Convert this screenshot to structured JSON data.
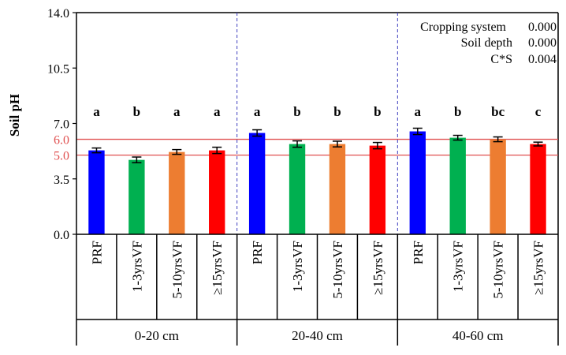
{
  "chart_data": {
    "type": "bar",
    "title": "",
    "xlabel": "",
    "ylabel": "Soil pH",
    "ylim": [
      0,
      14
    ],
    "yticks": [
      "0.0",
      "3.5",
      "7.0",
      "10.5",
      "14.0"
    ],
    "reference_lines": [
      {
        "value": 6.0,
        "label": "6.0",
        "color": "#e05050"
      },
      {
        "value": 5.0,
        "label": "5.0",
        "color": "#e05050"
      }
    ],
    "stats": [
      {
        "label": "Cropping system",
        "value": "0.000"
      },
      {
        "label": "Soil depth",
        "value": "0.000"
      },
      {
        "label": "C*S",
        "value": "0.004"
      }
    ],
    "series_colors": {
      "PRF": "#0000ff",
      "1-3yrsVF": "#00b050",
      "5-10yrsVF": "#ed7d31",
      "≥15yrsVF": "#ff0000"
    },
    "groups": [
      {
        "depth": "0-20 cm",
        "bars": [
          {
            "category": "PRF",
            "value": 5.3,
            "error": 0.15,
            "letter": "a"
          },
          {
            "category": "1-3yrsVF",
            "value": 4.7,
            "error": 0.18,
            "letter": "b"
          },
          {
            "category": "5-10yrsVF",
            "value": 5.2,
            "error": 0.15,
            "letter": "a"
          },
          {
            "category": "≥15yrsVF",
            "value": 5.3,
            "error": 0.2,
            "letter": "a"
          }
        ]
      },
      {
        "depth": "20-40 cm",
        "bars": [
          {
            "category": "PRF",
            "value": 6.4,
            "error": 0.2,
            "letter": "a"
          },
          {
            "category": "1-3yrsVF",
            "value": 5.7,
            "error": 0.2,
            "letter": "b"
          },
          {
            "category": "5-10yrsVF",
            "value": 5.7,
            "error": 0.18,
            "letter": "b"
          },
          {
            "category": "≥15yrsVF",
            "value": 5.6,
            "error": 0.2,
            "letter": "b"
          }
        ]
      },
      {
        "depth": "40-60 cm",
        "bars": [
          {
            "category": "PRF",
            "value": 6.5,
            "error": 0.2,
            "letter": "a"
          },
          {
            "category": "1-3yrsVF",
            "value": 6.1,
            "error": 0.15,
            "letter": "b"
          },
          {
            "category": "5-10yrsVF",
            "value": 6.0,
            "error": 0.15,
            "letter": "bc"
          },
          {
            "category": "≥15yrsVF",
            "value": 5.7,
            "error": 0.12,
            "letter": "c"
          }
        ]
      }
    ]
  }
}
